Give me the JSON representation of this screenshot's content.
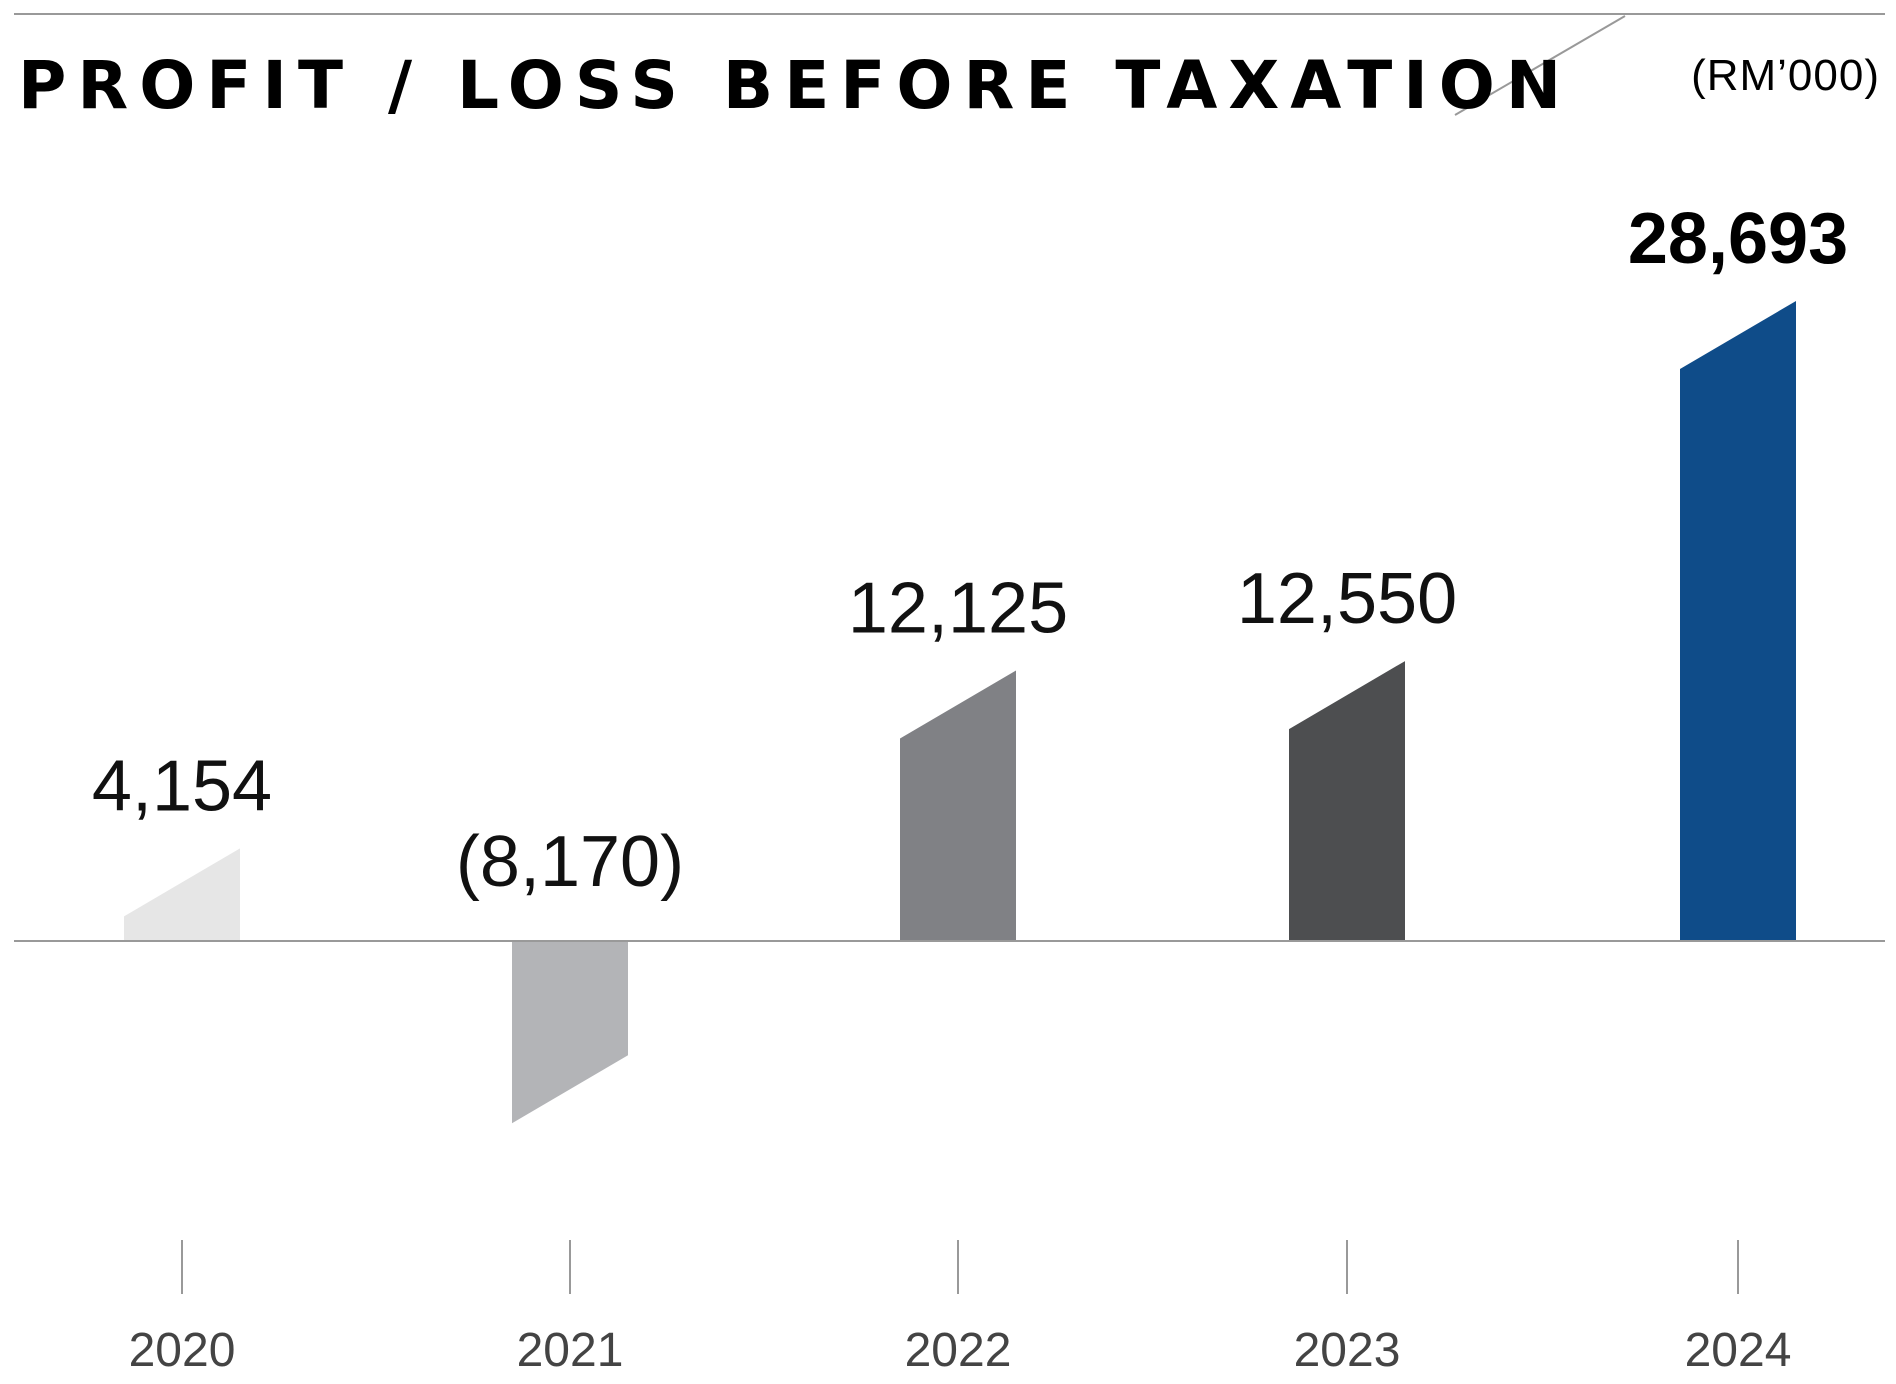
{
  "chart_data": {
    "type": "bar",
    "title": "PROFIT / LOSS BEFORE TAXATION",
    "unit": "(RM’000)",
    "categories": [
      "2020",
      "2021",
      "2022",
      "2023",
      "2024"
    ],
    "values": [
      4154,
      -8170,
      12125,
      12550,
      28693
    ],
    "value_labels": [
      "4,154",
      "(8,170)",
      "12,125",
      "12,550",
      "28,693"
    ],
    "colors": [
      "#e6e6e6",
      "#b3b4b7",
      "#808185",
      "#4d4e50",
      "#0f4c89"
    ],
    "highlight_index": 4,
    "ylim": [
      -14000,
      34000
    ],
    "grid": false,
    "legend": "none"
  }
}
